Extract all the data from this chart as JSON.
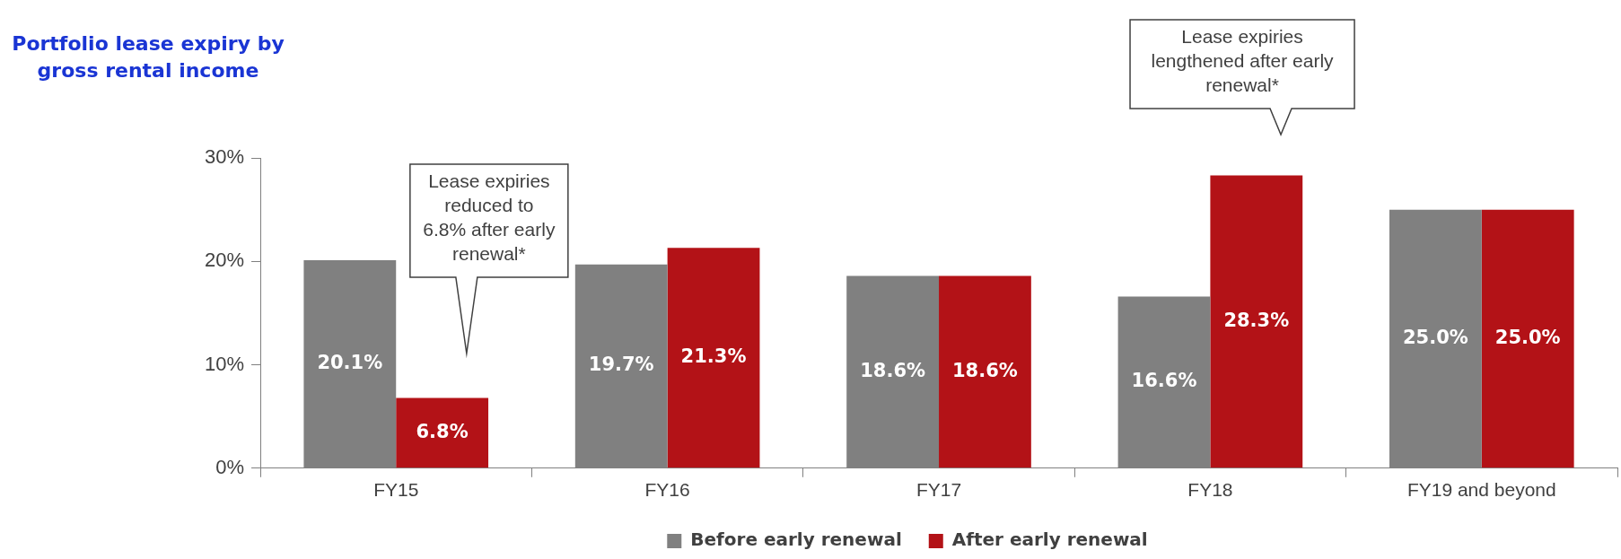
{
  "chart_data": {
    "type": "bar",
    "title": "Portfolio lease expiry by gross rental income",
    "categories": [
      "FY15",
      "FY16",
      "FY17",
      "FY18",
      "FY19 and beyond"
    ],
    "series": [
      {
        "name": "Before early renewal",
        "color": "#808080",
        "values": [
          20.1,
          19.7,
          18.6,
          16.6,
          25.0
        ],
        "value_labels": [
          "20.1%",
          "19.7%",
          "18.6%",
          "16.6%",
          "25.0%"
        ]
      },
      {
        "name": "After early renewal",
        "color": "#b31217",
        "values": [
          6.8,
          21.3,
          18.6,
          28.3,
          25.0
        ],
        "value_labels": [
          "6.8%",
          "21.3%",
          "18.6%",
          "28.3%",
          "25.0%"
        ]
      }
    ],
    "ylim": [
      0,
      30
    ],
    "yticks": [
      {
        "value": 0,
        "label": "0%"
      },
      {
        "value": 10,
        "label": "10%"
      },
      {
        "value": 20,
        "label": "20%"
      },
      {
        "value": 30,
        "label": "30%"
      }
    ],
    "grid": false,
    "legend": "bottom",
    "annotations": [
      "Lease expiries reduced to 6.8% after early renewal*",
      "Lease expiries lengthened after early renewal*"
    ]
  }
}
